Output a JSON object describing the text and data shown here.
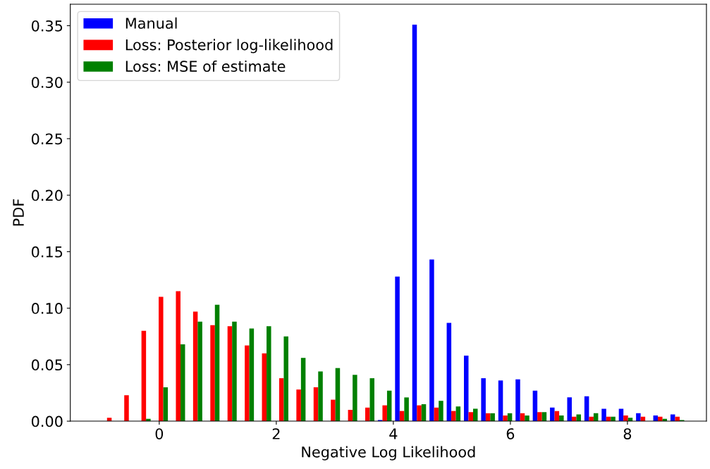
{
  "chart_data": {
    "type": "histogram",
    "xlabel": "Negative Log Likelihood",
    "ylabel": "PDF",
    "bins": [
      -1.0,
      -0.7059,
      -0.4118,
      -0.1176,
      0.1765,
      0.4706,
      0.7647,
      1.0588,
      1.3529,
      1.6471,
      1.9412,
      2.2353,
      2.5294,
      2.8235,
      3.1176,
      3.4118,
      3.7059,
      4.0,
      4.2941,
      4.5882,
      4.8824,
      5.1765,
      5.4706,
      5.7647,
      6.0588,
      6.3529,
      6.6471,
      6.9412,
      7.2353,
      7.5294,
      7.8235,
      8.1176,
      8.4118,
      8.7059,
      9.0
    ],
    "series": [
      {
        "name": "Manual",
        "color": "#0000ff",
        "values": [
          0,
          0,
          0,
          0,
          0,
          0,
          0,
          0,
          0,
          0,
          0,
          0,
          0,
          0,
          0,
          0,
          0.001,
          0.128,
          0.351,
          0.143,
          0.087,
          0.058,
          0.038,
          0.036,
          0.037,
          0.027,
          0.012,
          0.021,
          0.022,
          0.011,
          0.011,
          0.007,
          0.005,
          0.006
        ]
      },
      {
        "name": "Loss: Posterior log-likelihood",
        "color": "#ff0000",
        "values": [
          0.003,
          0.023,
          0.08,
          0.11,
          0.115,
          0.097,
          0.085,
          0.084,
          0.067,
          0.06,
          0.038,
          0.028,
          0.03,
          0.019,
          0.01,
          0.012,
          0.014,
          0.009,
          0.014,
          0.012,
          0.009,
          0.008,
          0.007,
          0.005,
          0.007,
          0.008,
          0.009,
          0.004,
          0.004,
          0.004,
          0.005,
          0.004,
          0.004,
          0.004
        ]
      },
      {
        "name": "Loss: MSE of estimate",
        "color": "#008000",
        "values": [
          0,
          0,
          0.002,
          0.03,
          0.068,
          0.088,
          0.103,
          0.088,
          0.082,
          0.084,
          0.075,
          0.056,
          0.044,
          0.047,
          0.041,
          0.038,
          0.027,
          0.021,
          0.015,
          0.018,
          0.013,
          0.011,
          0.007,
          0.007,
          0.005,
          0.008,
          0.005,
          0.006,
          0.007,
          0.004,
          0.003,
          0,
          0.002,
          0.001
        ]
      }
    ],
    "xlim": [
      -1.52,
      9.35
    ],
    "xticks": [
      0,
      2,
      4,
      6,
      8
    ],
    "ylim": [
      0,
      0.369
    ],
    "yticks": [
      {
        "value": 0,
        "label": "0.00"
      },
      {
        "value": 0.05,
        "label": "0.05"
      },
      {
        "value": 0.1,
        "label": "0.10"
      },
      {
        "value": 0.15,
        "label": "0.15"
      },
      {
        "value": 0.2,
        "label": "0.20"
      },
      {
        "value": 0.25,
        "label": "0.25"
      },
      {
        "value": 0.3,
        "label": "0.30"
      },
      {
        "value": 0.35,
        "label": "0.35"
      }
    ],
    "legend": "top left",
    "grid": false
  }
}
